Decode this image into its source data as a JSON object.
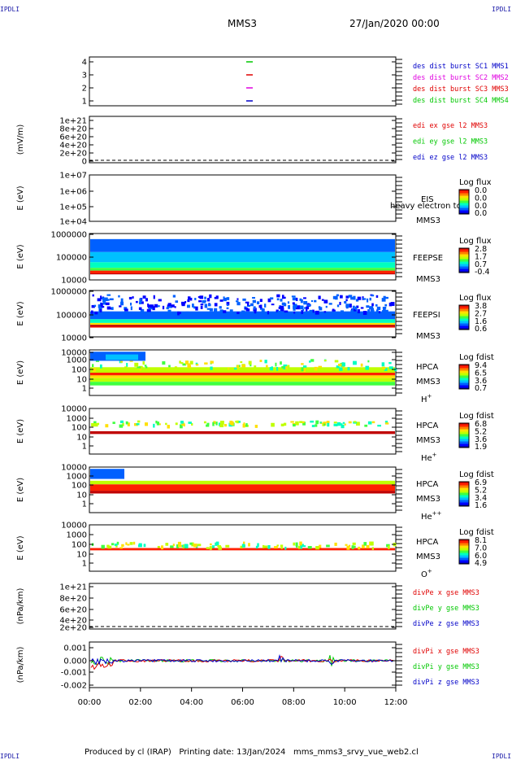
{
  "header": {
    "corner_label": "IPDLI",
    "mission": "MMS3",
    "datetime": "27/Jan/2020 00:00"
  },
  "footer": {
    "produced_by": "Produced by cl (IRAP)",
    "printing_date": "Printing date: 13/Jan/2024",
    "filename": "mms_mms3_srvy_vue_web2.cl"
  },
  "colors": {
    "mms1": "#0000c8",
    "mms2": "#e000e0",
    "mms3": "#e00000",
    "mms4": "#00c800",
    "x": "#e00000",
    "y": "#00c800",
    "z": "#0000c8",
    "axis": "#000000"
  },
  "chart_data": [
    {
      "id": "des-dist-burst",
      "type": "line",
      "yticks": [
        "4",
        "3",
        "2",
        "1"
      ],
      "legend": [
        {
          "label": "des dist burst SC1 MMS1",
          "color": "#0000c8"
        },
        {
          "label": "des dist burst SC2 MMS2",
          "color": "#e000e0"
        },
        {
          "label": "des dist burst SC3 MMS3",
          "color": "#e00000"
        },
        {
          "label": "des dist burst SC4 MMS4",
          "color": "#00c800"
        }
      ],
      "series": [
        {
          "name": "des dist burst SC4 MMS4",
          "x": [
            "06:20"
          ],
          "y": [
            4
          ],
          "color": "#00c800"
        },
        {
          "name": "des dist burst SC3 MMS3",
          "x": [
            "06:20"
          ],
          "y": [
            3
          ],
          "color": "#e00000"
        },
        {
          "name": "des dist burst SC2 MMS2",
          "x": [
            "06:20"
          ],
          "y": [
            2
          ],
          "color": "#e000e0"
        },
        {
          "name": "des dist burst SC1 MMS1",
          "x": [
            "06:20"
          ],
          "y": [
            1
          ],
          "color": "#0000c8"
        }
      ]
    },
    {
      "id": "edi-e-gse",
      "type": "line",
      "ylabel": "(mV/m)",
      "yticks": [
        "1e+21",
        "8e+20",
        "6e+20",
        "4e+20",
        "2e+20",
        "0"
      ],
      "legend": [
        {
          "label": "edi ex gse l2 MMS3",
          "color": "#e00000"
        },
        {
          "label": "edi ey gse l2 MMS3",
          "color": "#00c800"
        },
        {
          "label": "edi ez gse l2 MMS3",
          "color": "#0000c8"
        }
      ],
      "zero_line": true
    },
    {
      "id": "eis",
      "type": "heatmap",
      "ylabel": "E (eV)",
      "yticks": [
        "1e+07",
        "1e+06",
        "1e+05",
        "1e+04"
      ],
      "labels": [
        "EIS",
        "MMS3"
      ],
      "overlay_text": "heavy electron to",
      "colorbar": {
        "title": "Log flux",
        "ticks": [
          "0.0",
          "0.0",
          "0.0",
          "0.0"
        ]
      }
    },
    {
      "id": "feepse",
      "type": "heatmap",
      "ylabel": "E (eV)",
      "yticks": [
        "1000000",
        "100000",
        "10000"
      ],
      "labels": [
        "FEEPSE",
        "MMS3"
      ],
      "colorbar": {
        "title": "Log flux",
        "ticks": [
          "2.8",
          "1.7",
          "0.7",
          "-0.4"
        ]
      }
    },
    {
      "id": "feepsi",
      "type": "heatmap",
      "ylabel": "E (eV)",
      "yticks": [
        "1000000",
        "100000",
        "10000"
      ],
      "labels": [
        "FEEPSI",
        "MMS3"
      ],
      "colorbar": {
        "title": "Log flux",
        "ticks": [
          "3.8",
          "2.7",
          "1.6",
          "0.6"
        ]
      }
    },
    {
      "id": "hpca-h",
      "type": "heatmap",
      "ylabel": "E (eV)",
      "yticks": [
        "10000",
        "1000",
        "100",
        "10",
        "1"
      ],
      "labels": [
        "HPCA",
        "MMS3"
      ],
      "species": "H",
      "charge": "+",
      "colorbar": {
        "title": "Log fdist",
        "ticks": [
          "9.4",
          "6.5",
          "3.6",
          "0.7"
        ]
      }
    },
    {
      "id": "hpca-he",
      "type": "heatmap",
      "ylabel": "E (eV)",
      "yticks": [
        "10000",
        "1000",
        "100",
        "10",
        "1"
      ],
      "labels": [
        "HPCA",
        "MMS3"
      ],
      "species": "He",
      "charge": "+",
      "colorbar": {
        "title": "Log fdist",
        "ticks": [
          "6.8",
          "5.2",
          "3.6",
          "1.9"
        ]
      }
    },
    {
      "id": "hpca-he2",
      "type": "heatmap",
      "ylabel": "E (eV)",
      "yticks": [
        "10000",
        "1000",
        "100",
        "10",
        "1"
      ],
      "labels": [
        "HPCA",
        "MMS3"
      ],
      "species": "He",
      "charge": "++",
      "colorbar": {
        "title": "Log fdist",
        "ticks": [
          "6.9",
          "5.2",
          "3.4",
          "1.6"
        ]
      }
    },
    {
      "id": "hpca-o",
      "type": "heatmap",
      "ylabel": "E (eV)",
      "yticks": [
        "10000",
        "1000",
        "100",
        "10",
        "1"
      ],
      "labels": [
        "HPCA",
        "MMS3"
      ],
      "species": "O",
      "charge": "+",
      "colorbar": {
        "title": "Log fdist",
        "ticks": [
          "8.1",
          "7.0",
          "6.0",
          "4.9"
        ]
      }
    },
    {
      "id": "divpe",
      "type": "line",
      "ylabel": "(nPa/km)",
      "yticks": [
        "1e+21",
        "8e+20",
        "6e+20",
        "4e+20",
        "2e+20",
        "0"
      ],
      "legend": [
        {
          "label": "divPe x gse MMS3",
          "color": "#e00000"
        },
        {
          "label": "divPe y gse MMS3",
          "color": "#00c800"
        },
        {
          "label": "divPe z gse MMS3",
          "color": "#0000c8"
        }
      ],
      "zero_line": true
    },
    {
      "id": "divpi",
      "type": "line",
      "ylabel": "(nPa/km)",
      "yticks": [
        "0.001",
        "0.000",
        "-0.001",
        "-0.002"
      ],
      "legend": [
        {
          "label": "divPi x gse MMS3",
          "color": "#e00000"
        },
        {
          "label": "divPi y gse MMS3",
          "color": "#00c800"
        },
        {
          "label": "divPi z gse MMS3",
          "color": "#0000c8"
        }
      ]
    }
  ],
  "xaxis": {
    "ticks": [
      "00:00",
      "02:00",
      "04:00",
      "06:00",
      "08:00",
      "10:00",
      "12:00"
    ]
  }
}
